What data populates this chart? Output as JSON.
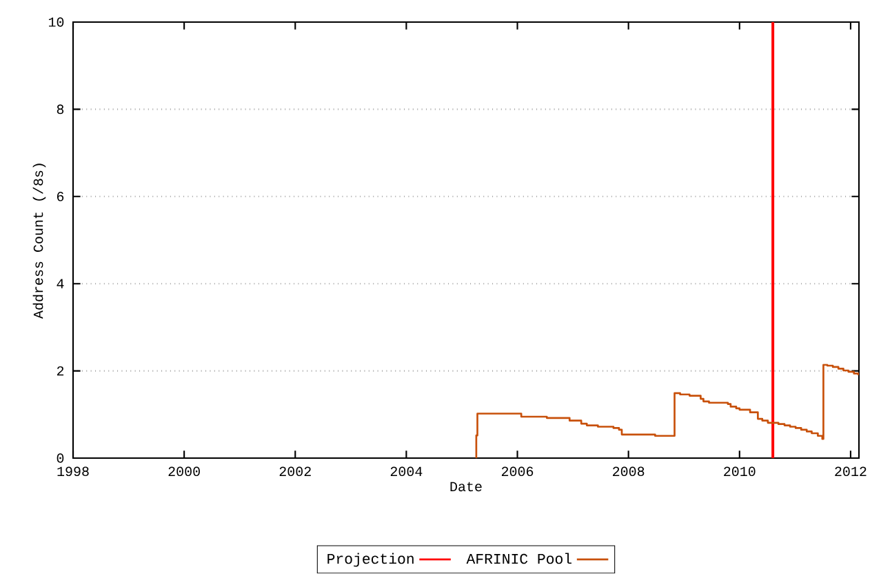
{
  "chart_data": {
    "type": "step",
    "xlabel": "Date",
    "ylabel": "Address Count (/8s)",
    "xlim": [
      1998,
      2012.15
    ],
    "xticks": [
      1998,
      2000,
      2002,
      2004,
      2006,
      2008,
      2010,
      2012
    ],
    "ylim": [
      0,
      10
    ],
    "yticks": [
      0,
      2,
      4,
      6,
      8,
      10
    ],
    "grid": "y",
    "legend": "bottom",
    "marker": "none",
    "line_style": "solid",
    "series": [
      {
        "name": "Projection",
        "type": "line",
        "color": "#ff0000",
        "x": [
          2010.6,
          2010.6
        ],
        "values": [
          0,
          10
        ]
      },
      {
        "name": "AFRINIC Pool",
        "color": "#c8500a",
        "x": [
          2005.25,
          2005.26,
          2005.28,
          2006.07,
          2006.53,
          2006.94,
          2007.15,
          2007.25,
          2007.45,
          2007.73,
          2007.83,
          2007.88,
          2008.48,
          2008.83,
          2008.93,
          2009.1,
          2009.3,
          2009.35,
          2009.45,
          2009.79,
          2009.84,
          2009.94,
          2010.0,
          2010.19,
          2010.33,
          2010.41,
          2010.51,
          2010.7,
          2010.81,
          2010.91,
          2011.01,
          2011.11,
          2011.21,
          2011.3,
          2011.41,
          2011.49,
          2011.51,
          2011.58,
          2011.68,
          2011.78,
          2011.87,
          2011.96,
          2012.06,
          2012.14
        ],
        "values": [
          0,
          0.52,
          1.02,
          0.95,
          0.92,
          0.86,
          0.79,
          0.75,
          0.72,
          0.69,
          0.65,
          0.54,
          0.51,
          1.49,
          1.46,
          1.43,
          1.36,
          1.3,
          1.27,
          1.24,
          1.18,
          1.14,
          1.11,
          1.05,
          0.9,
          0.86,
          0.81,
          0.78,
          0.75,
          0.72,
          0.69,
          0.65,
          0.61,
          0.57,
          0.51,
          0.44,
          2.14,
          2.12,
          2.09,
          2.05,
          2.01,
          1.98,
          1.94,
          1.9
        ]
      }
    ]
  }
}
